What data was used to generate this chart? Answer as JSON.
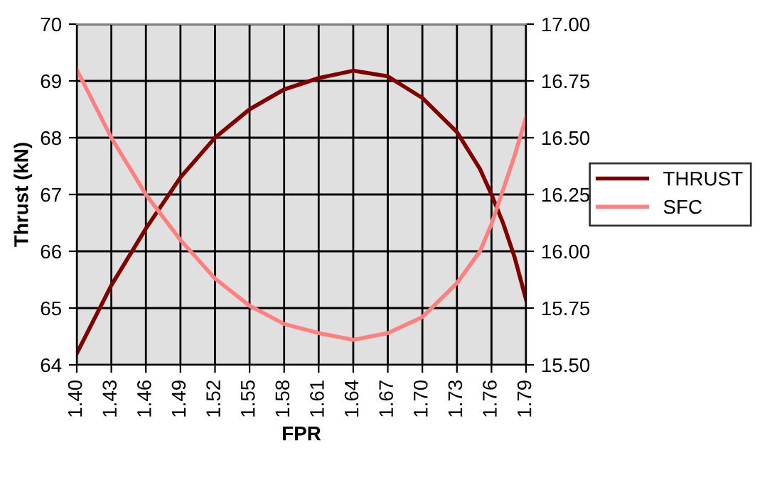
{
  "chart_data": {
    "type": "line",
    "xlabel": "FPR",
    "ylabel": "Thrust (kN)",
    "xlim": [
      1.4,
      1.79
    ],
    "xticks": [
      {
        "value": 1.4,
        "label": "1.40"
      },
      {
        "value": 1.43,
        "label": "1.43"
      },
      {
        "value": 1.46,
        "label": "1.46"
      },
      {
        "value": 1.49,
        "label": "1.49"
      },
      {
        "value": 1.52,
        "label": "1.52"
      },
      {
        "value": 1.55,
        "label": "1.55"
      },
      {
        "value": 1.58,
        "label": "1.58"
      },
      {
        "value": 1.61,
        "label": "1.61"
      },
      {
        "value": 1.64,
        "label": "1.64"
      },
      {
        "value": 1.67,
        "label": "1.67"
      },
      {
        "value": 1.7,
        "label": "1.70"
      },
      {
        "value": 1.73,
        "label": "1.73"
      },
      {
        "value": 1.76,
        "label": "1.76"
      },
      {
        "value": 1.79,
        "label": "1.79"
      }
    ],
    "ylim": [
      64,
      70
    ],
    "yticks": [
      64,
      65,
      66,
      67,
      68,
      69,
      70
    ],
    "y2lim": [
      15.5,
      17.0
    ],
    "y2ticks": [
      {
        "value": 15.5,
        "label": "15.50"
      },
      {
        "value": 15.75,
        "label": "15.75"
      },
      {
        "value": 16.0,
        "label": "16.00"
      },
      {
        "value": 16.25,
        "label": "16.25"
      },
      {
        "value": 16.5,
        "label": "16.50"
      },
      {
        "value": 16.75,
        "label": "16.75"
      },
      {
        "value": 17.0,
        "label": "17.00"
      }
    ],
    "grid": true,
    "legend": "right",
    "marker": "none",
    "line_style": "solid",
    "x": [
      1.4,
      1.43,
      1.46,
      1.49,
      1.52,
      1.55,
      1.58,
      1.61,
      1.64,
      1.67,
      1.7,
      1.73,
      1.75,
      1.76,
      1.77,
      1.78,
      1.79
    ],
    "series": [
      {
        "name": "THRUST",
        "color": "#800000",
        "values": [
          64.2,
          65.4,
          66.4,
          67.3,
          68.0,
          68.5,
          68.85,
          69.05,
          69.18,
          69.08,
          68.7,
          68.1,
          67.45,
          67.0,
          66.5,
          65.9,
          65.15
        ]
      },
      {
        "name": "SFC",
        "color": "#ff8080",
        "axis": "y2",
        "values": [
          16.8,
          16.5,
          16.25,
          16.05,
          15.88,
          15.76,
          15.68,
          15.64,
          15.61,
          15.64,
          15.71,
          15.86,
          16.0,
          16.12,
          16.27,
          16.42,
          16.59
        ]
      }
    ]
  }
}
